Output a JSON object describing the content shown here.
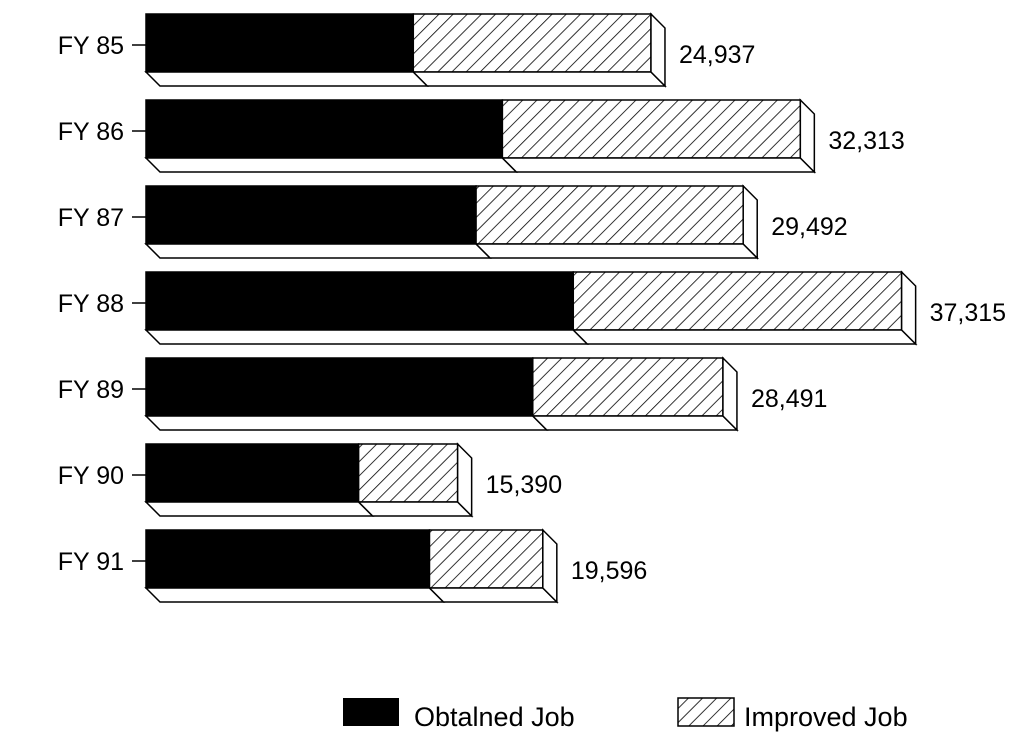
{
  "chart_data": {
    "type": "bar",
    "orientation": "horizontal",
    "stacked": true,
    "style": "3d",
    "title": "",
    "xlabel": "",
    "ylabel": "",
    "categories": [
      "FY 85",
      "FY 86",
      "FY 87",
      "FY 88",
      "FY 89",
      "FY 90",
      "FY 91"
    ],
    "series": [
      {
        "name": "Obtained Job",
        "values": [
          13200,
          17600,
          16300,
          21100,
          19100,
          10500,
          14000
        ],
        "fill": "solid",
        "color": "#000000"
      },
      {
        "name": "Improved Job",
        "values": [
          11737,
          14713,
          13192,
          16215,
          9391,
          4890,
          5596
        ],
        "fill": "hatched",
        "color": "#000000"
      }
    ],
    "totals": [
      "24,937",
      "32,313",
      "29,492",
      "37,315",
      "28,491",
      "15,390",
      "19,596"
    ],
    "xlim": [
      0,
      40000
    ],
    "grid": false,
    "legend": {
      "position": "bottom-right",
      "entries": [
        "Obtalned Job",
        "Improved Job"
      ]
    }
  }
}
